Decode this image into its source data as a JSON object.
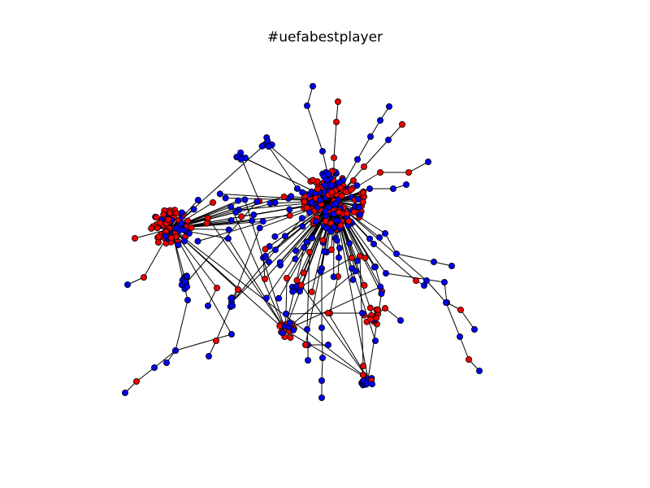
{
  "figure": {
    "title": "#uefabestplayer"
  },
  "palette": {
    "node_colors": [
      "#0000ee",
      "#ee0000"
    ],
    "node_outline": "#000000",
    "edge_color": "#000000",
    "background": "#ffffff"
  }
}
